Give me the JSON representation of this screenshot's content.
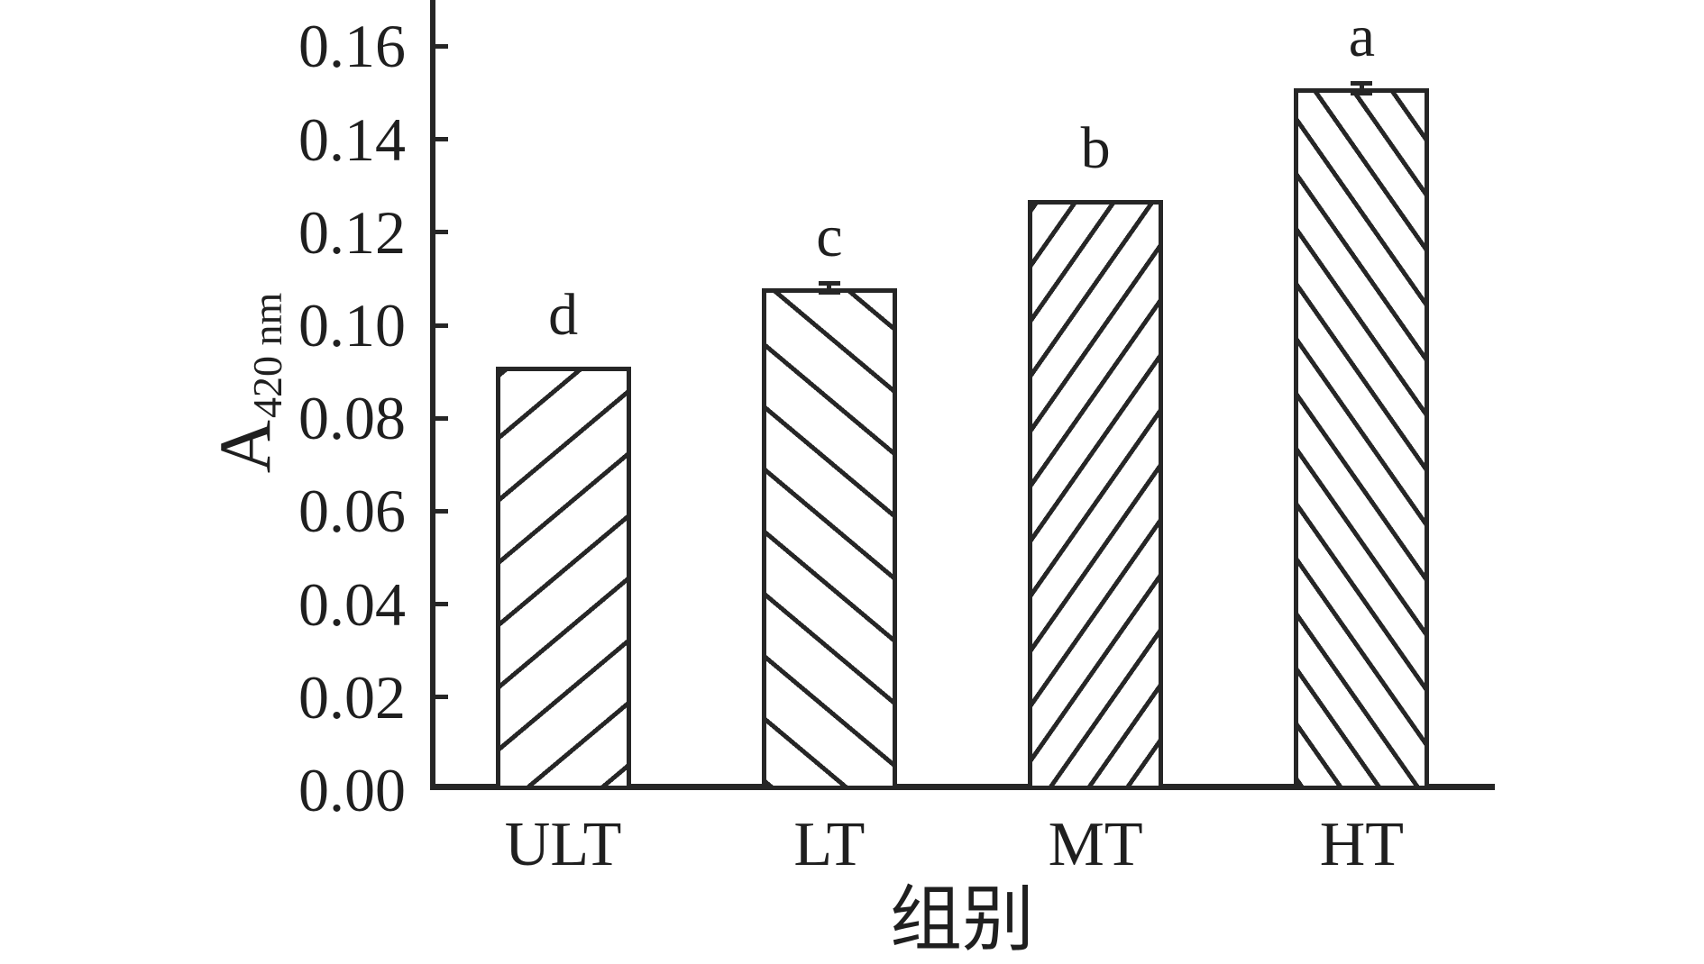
{
  "figure": {
    "background": "#ffffff",
    "ink_color": "#262626"
  },
  "chart_data": {
    "type": "bar",
    "title": "",
    "xlabel": "组别",
    "ylabel": "A",
    "ylabel_subscript": "420 nm",
    "categories": [
      "ULT",
      "LT",
      "MT",
      "HT"
    ],
    "values": [
      0.091,
      0.108,
      0.127,
      0.151
    ],
    "error_bars": [
      0,
      0.001,
      0,
      0.001
    ],
    "sig_letters": [
      "d",
      "c",
      "b",
      "a"
    ],
    "hatch_patterns": [
      "forward-wide",
      "backward-wide",
      "forward-dense",
      "backward-dense"
    ],
    "ylim": [
      0,
      0.17
    ],
    "yticks": [
      0.0,
      0.02,
      0.04,
      0.06,
      0.08,
      0.1,
      0.12,
      0.14,
      0.16
    ],
    "ytick_labels": [
      "0.00",
      "0.02",
      "0.04",
      "0.06",
      "0.08",
      "0.10",
      "0.12",
      "0.14",
      "0.16"
    ],
    "grid": false,
    "legend": null
  }
}
